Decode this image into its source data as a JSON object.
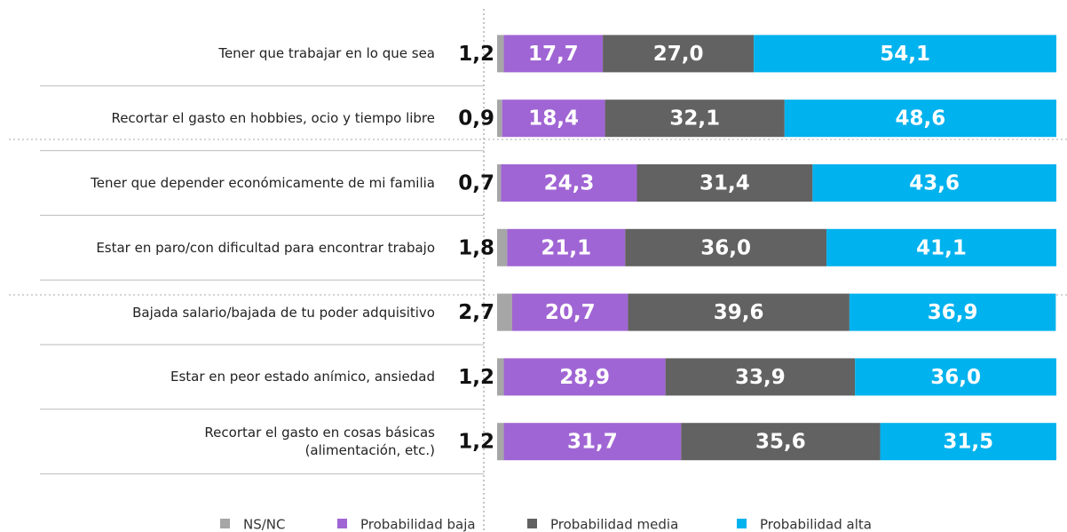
{
  "chart_data": {
    "type": "stacked_bar_horizontal",
    "categories": [
      "Tener que trabajar en lo que sea",
      "Recortar el gasto en hobbies, ocio y tiempo libre",
      "Tener que depender económicamente de mi familia",
      "Estar en paro/con dificultad para encontrar trabajo",
      "Bajada salario/bajada de tu poder adquisitivo",
      "Estar en peor estado anímico, ansiedad",
      "Recortar el gasto en cosas básicas\n(alimentación, etc.)"
    ],
    "series": [
      {
        "name": "NS/NC",
        "color": "#a6a6a6",
        "values": [
          1.2,
          0.9,
          0.7,
          1.8,
          2.7,
          1.2,
          1.2
        ],
        "value_labels": [
          "1,2",
          "0,9",
          "0,7",
          "1,8",
          "2,7",
          "1,2",
          "1,2"
        ]
      },
      {
        "name": "Probabilidad baja",
        "color": "#a065d4",
        "values": [
          17.7,
          18.4,
          24.3,
          21.1,
          20.7,
          28.9,
          31.7
        ],
        "value_labels": [
          "17,7",
          "18,4",
          "24,3",
          "21,1",
          "20,7",
          "28,9",
          "31,7"
        ]
      },
      {
        "name": "Probabilidad media",
        "color": "#626262",
        "values": [
          27.0,
          32.1,
          31.4,
          36.0,
          39.6,
          33.9,
          35.6
        ],
        "value_labels": [
          "27,0",
          "32,1",
          "31,4",
          "36,0",
          "39,6",
          "33,9",
          "35,6"
        ]
      },
      {
        "name": "Probabilidad alta",
        "color": "#00b2ee",
        "values": [
          54.1,
          48.6,
          43.6,
          41.1,
          36.9,
          36.0,
          31.5
        ],
        "value_labels": [
          "54,1",
          "48,6",
          "43,6",
          "41,1",
          "36,9",
          "36,0",
          "31,5"
        ]
      }
    ],
    "xlim": [
      0,
      100
    ]
  }
}
